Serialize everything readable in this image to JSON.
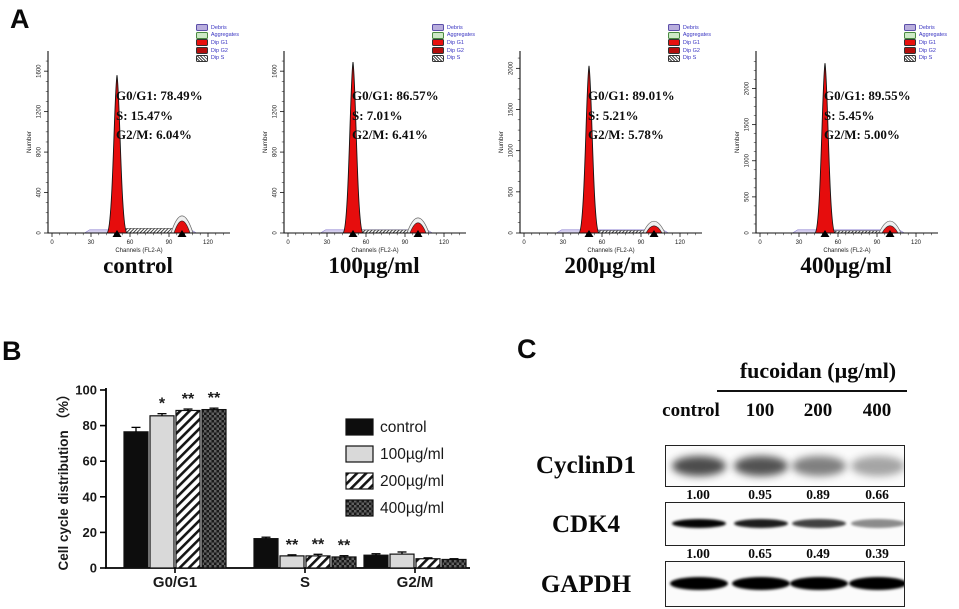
{
  "panel_a": {
    "label": "A",
    "legend": {
      "text_color": "#3a35c2",
      "items": [
        {
          "label": "Debris",
          "color": "#b9aedd",
          "border": "#5b4ea8"
        },
        {
          "label": "Aggregates",
          "color": "#cde9c6",
          "border": "#4a8a42"
        },
        {
          "label": "Dip G1",
          "color": "#e8110e",
          "border": "#333333"
        },
        {
          "label": "Dip G2",
          "color": "#b30d0b",
          "border": "#333333"
        },
        {
          "label": "Dip S",
          "color": "hatch",
          "border": "#333333"
        }
      ]
    }
  },
  "panel_b": {
    "label": "B"
  },
  "panel_c": {
    "label": "C",
    "header": "fucoidan (µg/ml)",
    "col_labels": [
      "control",
      "100",
      "200",
      "400"
    ],
    "rows": [
      {
        "name": "CyclinD1",
        "values": [
          "1.00",
          "0.95",
          "0.89",
          "0.66"
        ]
      },
      {
        "name": "CDK4",
        "values": [
          "1.00",
          "0.65",
          "0.49",
          "0.39"
        ]
      },
      {
        "name": "GAPDH",
        "values": []
      }
    ]
  },
  "chart_data": [
    {
      "type": "bar",
      "panel": "B",
      "title": "",
      "categories": [
        "G0/G1",
        "S",
        "G2/M"
      ],
      "series": [
        {
          "name": "control",
          "style": "solid-black",
          "values": [
            76.5,
            16.5,
            7.2
          ],
          "errors": [
            2.5,
            0.8,
            0.8
          ],
          "sig": [
            "",
            "",
            ""
          ]
        },
        {
          "name": "100µg/ml",
          "style": "light-gray",
          "values": [
            85.5,
            6.8,
            7.8
          ],
          "errors": [
            1.2,
            0.6,
            1.2
          ],
          "sig": [
            "*",
            "**",
            ""
          ]
        },
        {
          "name": "200µg/ml",
          "style": "diagonal-hatch",
          "values": [
            88.5,
            6.8,
            5.2
          ],
          "errors": [
            0.8,
            0.9,
            0.5
          ],
          "sig": [
            "**",
            "**",
            ""
          ]
        },
        {
          "name": "400µg/ml",
          "style": "dark-check",
          "values": [
            89.0,
            6.2,
            4.8
          ],
          "errors": [
            0.8,
            0.7,
            0.4
          ],
          "sig": [
            "**",
            "**",
            ""
          ]
        }
      ],
      "xlabel": "",
      "ylabel": "Cell cycle distribution （%）",
      "ylim": [
        0,
        100
      ],
      "yticks": [
        0,
        20,
        40,
        60,
        80,
        100
      ],
      "grid": false,
      "legend_position": "upper right"
    },
    {
      "type": "histogram-flow",
      "title": "control",
      "stats": [
        "G0/G1: 78.49%",
        "S: 15.47%",
        "G2/M: 6.04%"
      ],
      "ylabel": "Number",
      "xlabel": "Channels (FL2-A)",
      "y_ticks": [
        0,
        400,
        800,
        1200,
        1600
      ],
      "y_axis_max": 1750,
      "x_ticks": [
        0,
        30,
        60,
        90,
        120
      ],
      "x_max": 135,
      "g1_channel": 50,
      "g2_channel": 100,
      "g1_peak": 1560,
      "g2_peak": 130,
      "s_level": 45
    },
    {
      "type": "histogram-flow",
      "title": "100µg/ml",
      "stats": [
        "G0/G1: 86.57%",
        "S: 7.01%",
        "G2/M: 6.41%"
      ],
      "ylabel": "Number",
      "xlabel": "Channels (FL2-A)",
      "y_ticks": [
        0,
        400,
        800,
        1200,
        1600
      ],
      "y_axis_max": 1750,
      "x_ticks": [
        0,
        30,
        60,
        90,
        120
      ],
      "x_max": 135,
      "g1_channel": 50,
      "g2_channel": 100,
      "g1_peak": 1690,
      "g2_peak": 110,
      "s_level": 30
    },
    {
      "type": "histogram-flow",
      "title": "200µg/ml",
      "stats": [
        "G0/G1: 89.01%",
        "S: 5.21%",
        "G2/M: 5.78%"
      ],
      "ylabel": "Number",
      "xlabel": "Channels (FL2-A)",
      "y_ticks": [
        0,
        500,
        1000,
        1500,
        2000
      ],
      "y_axis_max": 2150,
      "x_ticks": [
        0,
        30,
        60,
        90,
        120
      ],
      "x_max": 135,
      "g1_channel": 50,
      "g2_channel": 100,
      "g1_peak": 2030,
      "g2_peak": 95,
      "s_level": 30
    },
    {
      "type": "histogram-flow",
      "title": "400µg/ml",
      "stats": [
        "G0/G1: 89.55%",
        "S: 5.45%",
        "G2/M: 5.00%"
      ],
      "ylabel": "Number",
      "xlabel": "Channels (FL2-A)",
      "y_ticks": [
        0,
        500,
        1000,
        1500,
        2000
      ],
      "y_axis_max": 2450,
      "x_ticks": [
        0,
        30,
        60,
        90,
        120
      ],
      "x_max": 135,
      "g1_channel": 50,
      "g2_channel": 100,
      "g1_peak": 2350,
      "g2_peak": 110,
      "s_level": 30
    }
  ]
}
